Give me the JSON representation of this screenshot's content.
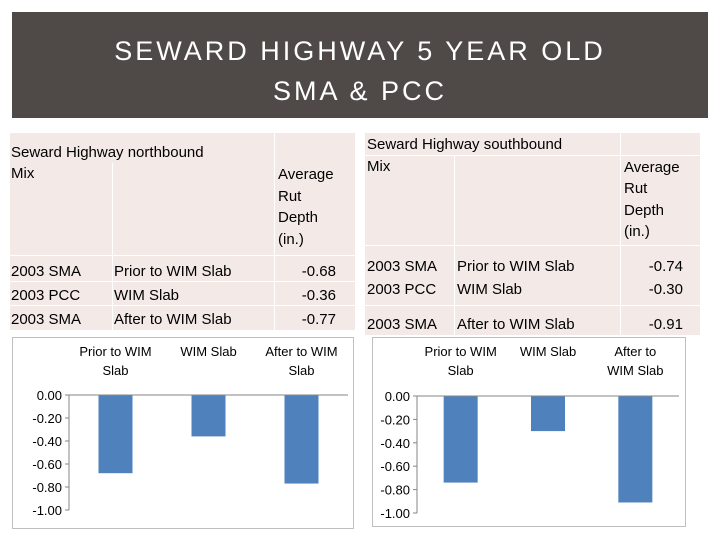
{
  "slide": {
    "title_line1": "SEWARD HIGHWAY 5 YEAR OLD",
    "title_line2": "SMA & PCC"
  },
  "northbound": {
    "header_label": "Seward Highway northbound",
    "header_mix": "Mix",
    "avg_header": [
      "Average",
      "Rut",
      "Depth",
      "(in.)"
    ],
    "rows": [
      {
        "mix": "2003 SMA",
        "section": "Prior to WIM Slab",
        "value": "-0.68"
      },
      {
        "mix": "2003 PCC",
        "section": "WIM Slab",
        "value": "-0.36"
      },
      {
        "mix": "2003 SMA",
        "section": "After to WIM Slab",
        "value": "-0.77"
      }
    ]
  },
  "southbound": {
    "header_label": "Seward Highway southbound",
    "header_mix": "Mix",
    "avg_header": [
      "Average",
      "Rut",
      "Depth",
      "(in.)"
    ],
    "rows": [
      {
        "mix": "2003 SMA",
        "section": "Prior to WIM Slab",
        "value": "-0.74"
      },
      {
        "mix": "2003 PCC",
        "section": "WIM Slab",
        "value": "-0.30"
      },
      {
        "mix": "2003 SMA",
        "section": "After to WIM Slab",
        "value": "-0.91"
      }
    ]
  },
  "chart_data": [
    {
      "type": "bar",
      "title": "",
      "categories": [
        "Prior to WIM Slab",
        "WIM Slab",
        "After to WIM Slab"
      ],
      "category_label_lines": [
        [
          "Prior to WIM",
          "Slab"
        ],
        [
          "WIM Slab"
        ],
        [
          "After to WIM",
          "Slab"
        ]
      ],
      "values": [
        -0.68,
        -0.36,
        -0.77
      ],
      "ylim": [
        -1.0,
        0.0
      ],
      "yticks": [
        "0.00",
        "-0.20",
        "-0.40",
        "-0.60",
        "-0.80",
        "-1.00"
      ],
      "xaxis_position": "top",
      "bar_color": "#4f81bd",
      "xlabel": "",
      "ylabel": ""
    },
    {
      "type": "bar",
      "title": "",
      "categories": [
        "Prior to WIM Slab",
        "WIM Slab",
        "After to WIM Slab"
      ],
      "category_label_lines": [
        [
          "Prior to WIM",
          "Slab"
        ],
        [
          "WIM Slab"
        ],
        [
          "After to",
          "WIM Slab"
        ]
      ],
      "values": [
        -0.74,
        -0.3,
        -0.91
      ],
      "ylim": [
        -1.0,
        0.0
      ],
      "yticks": [
        "0.00",
        "-0.20",
        "-0.40",
        "-0.60",
        "-0.80",
        "-1.00"
      ],
      "xaxis_position": "top",
      "bar_color": "#4f81bd",
      "xlabel": "",
      "ylabel": ""
    }
  ]
}
